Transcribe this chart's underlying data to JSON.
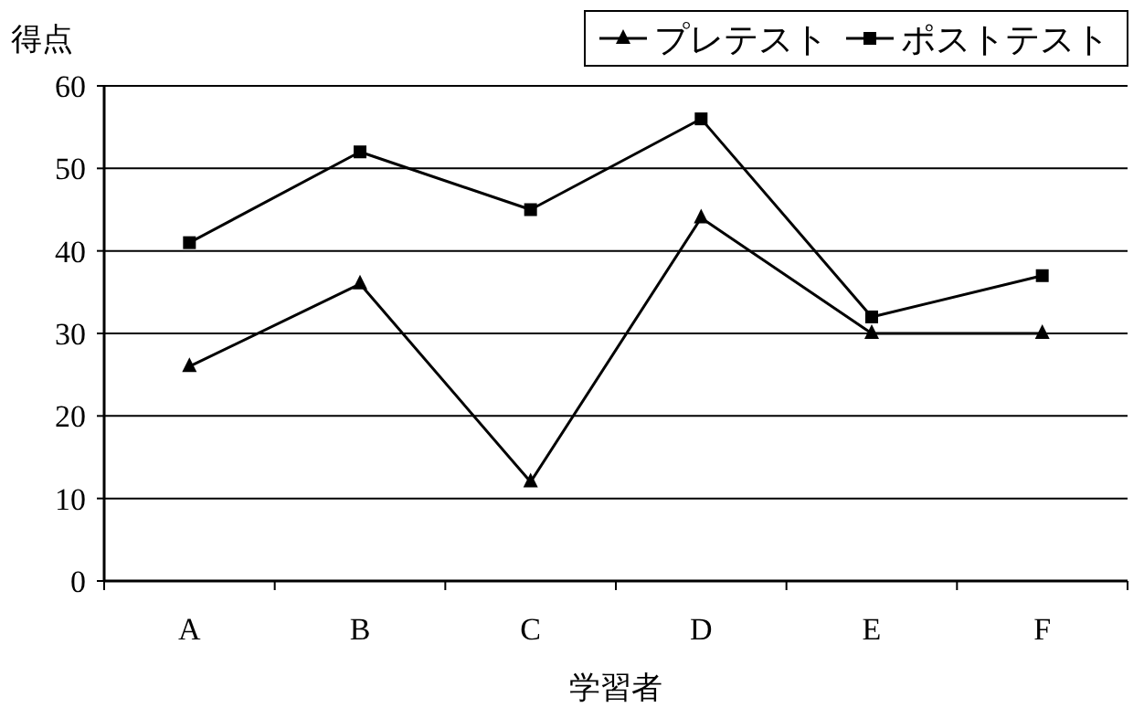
{
  "chart_data": {
    "type": "line",
    "categories": [
      "A",
      "B",
      "C",
      "D",
      "E",
      "F"
    ],
    "ylabel": "得点",
    "xlabel": "学習者",
    "ylim": [
      0,
      60
    ],
    "yticks": [
      0,
      10,
      20,
      30,
      40,
      50,
      60
    ],
    "grid": "y",
    "legend": "top right",
    "series": [
      {
        "name": "プレテスト",
        "color": "#000000",
        "marker": "triangle",
        "values": [
          26,
          36,
          12,
          44,
          30,
          30
        ]
      },
      {
        "name": "ポストテスト",
        "color": "#000000",
        "marker": "square",
        "values": [
          41,
          52,
          45,
          56,
          32,
          37
        ]
      }
    ]
  }
}
